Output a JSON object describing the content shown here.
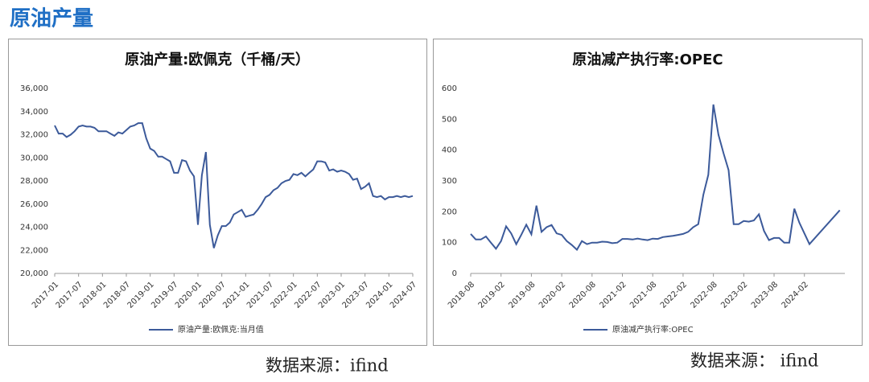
{
  "header": {
    "title": "原油产量"
  },
  "chart_data": [
    {
      "type": "line",
      "title": "原油产量:欧佩克（千桶/天）",
      "source": "数据来源：ifind",
      "x": [
        "2017-01",
        "2017-02",
        "2017-03",
        "2017-04",
        "2017-05",
        "2017-06",
        "2017-07",
        "2017-08",
        "2017-09",
        "2017-10",
        "2017-11",
        "2017-12",
        "2018-01",
        "2018-02",
        "2018-03",
        "2018-04",
        "2018-05",
        "2018-06",
        "2018-07",
        "2018-08",
        "2018-09",
        "2018-10",
        "2018-11",
        "2018-12",
        "2019-01",
        "2019-02",
        "2019-03",
        "2019-04",
        "2019-05",
        "2019-06",
        "2019-07",
        "2019-08",
        "2019-09",
        "2019-10",
        "2019-11",
        "2019-12",
        "2020-01",
        "2020-02",
        "2020-03",
        "2020-04",
        "2020-05",
        "2020-06",
        "2020-07",
        "2020-08",
        "2020-09",
        "2020-10",
        "2020-11",
        "2020-12",
        "2021-01",
        "2021-02",
        "2021-03",
        "2021-04",
        "2021-05",
        "2021-06",
        "2021-07",
        "2021-08",
        "2021-09",
        "2021-10",
        "2021-11",
        "2021-12",
        "2022-01",
        "2022-02",
        "2022-03",
        "2022-04",
        "2022-05",
        "2022-06",
        "2022-07",
        "2022-08",
        "2022-09",
        "2022-10",
        "2022-11",
        "2022-12",
        "2023-01",
        "2023-02",
        "2023-03",
        "2023-04",
        "2023-05",
        "2023-06",
        "2023-07",
        "2023-08",
        "2023-09",
        "2023-10",
        "2023-11",
        "2023-12",
        "2024-01",
        "2024-02",
        "2024-03",
        "2024-04",
        "2024-05",
        "2024-06",
        "2024-07"
      ],
      "series": [
        {
          "name": "原油产量:欧佩克:当月值",
          "color": "#3c5a9a",
          "values": [
            32800,
            32100,
            32100,
            31800,
            32000,
            32300,
            32700,
            32800,
            32700,
            32700,
            32600,
            32300,
            32300,
            32300,
            32100,
            31900,
            32200,
            32100,
            32400,
            32700,
            32800,
            33000,
            33000,
            31700,
            30800,
            30600,
            30100,
            30100,
            29900,
            29700,
            28700,
            28700,
            29800,
            29700,
            28900,
            28400,
            24200,
            28500,
            30500,
            24200,
            22200,
            23300,
            24100,
            24100,
            24400,
            25100,
            25300,
            25500,
            24900,
            25000,
            25100,
            25500,
            26000,
            26600,
            26800,
            27200,
            27400,
            27800,
            28000,
            28100,
            28600,
            28500,
            28700,
            28400,
            28700,
            29000,
            29700,
            29700,
            29600,
            28900,
            29000,
            28800,
            28900,
            28800,
            28600,
            28100,
            28200,
            27300,
            27500,
            27800,
            26700,
            26600,
            26700,
            26400,
            26600,
            26600,
            26700,
            26600,
            26700,
            26600,
            26700
          ]
        }
      ],
      "xlim": [
        "2017-01",
        "2024-07"
      ],
      "xticks": [
        "2017-01",
        "2017-07",
        "2018-01",
        "2018-07",
        "2019-01",
        "2019-07",
        "2020-01",
        "2020-07",
        "2021-01",
        "2021-07",
        "2022-01",
        "2022-07",
        "2023-01",
        "2023-07",
        "2024-01",
        "2024-07"
      ],
      "ylim": [
        20000,
        36000
      ],
      "yticks": [
        {
          "value": 20000,
          "label": "20,000"
        },
        {
          "value": 22000,
          "label": "22,000"
        },
        {
          "value": 24000,
          "label": "24,000"
        },
        {
          "value": 26000,
          "label": "26,000"
        },
        {
          "value": 28000,
          "label": "28,000"
        },
        {
          "value": 30000,
          "label": "30,000"
        },
        {
          "value": 32000,
          "label": "32,000"
        },
        {
          "value": 34000,
          "label": "34,000"
        },
        {
          "value": 36000,
          "label": "36,000"
        }
      ]
    },
    {
      "type": "line",
      "title": "原油减产执行率:OPEC",
      "source": "数据来源：  ifind",
      "x": [
        "2018-08",
        "2018-09",
        "2018-10",
        "2018-11",
        "2018-12",
        "2019-01",
        "2019-02",
        "2019-03",
        "2019-04",
        "2019-05",
        "2019-06",
        "2019-07",
        "2019-08",
        "2019-09",
        "2019-10",
        "2019-11",
        "2019-12",
        "2020-01",
        "2020-02",
        "2020-03",
        "2020-04",
        "2020-05",
        "2020-06",
        "2020-07",
        "2020-08",
        "2020-09",
        "2020-10",
        "2020-11",
        "2020-12",
        "2021-01",
        "2021-02",
        "2021-03",
        "2021-04",
        "2021-05",
        "2021-06",
        "2021-07",
        "2021-08",
        "2021-09",
        "2021-10",
        "2021-11",
        "2021-12",
        "2022-01",
        "2022-02",
        "2022-03",
        "2022-04",
        "2022-05",
        "2022-06",
        "2022-07",
        "2022-08",
        "2022-09",
        "2022-10",
        "2022-11",
        "2022-12",
        "2023-01",
        "2023-02",
        "2023-03",
        "2023-04",
        "2023-05",
        "2023-06",
        "2023-07",
        "2023-08",
        "2023-09",
        "2023-10",
        "2023-11",
        "2023-12",
        "2024-01",
        "2024-02",
        "2024-03",
        "2024-09"
      ],
      "series": [
        {
          "name": "原油减产执行率:OPEC",
          "color": "#3c5a9a",
          "values": [
            128,
            110,
            110,
            120,
            100,
            80,
            105,
            153,
            130,
            95,
            125,
            158,
            127,
            220,
            135,
            150,
            157,
            130,
            125,
            105,
            92,
            77,
            105,
            95,
            100,
            100,
            103,
            102,
            98,
            100,
            112,
            112,
            110,
            113,
            110,
            108,
            113,
            112,
            118,
            120,
            122,
            125,
            128,
            135,
            150,
            160,
            255,
            320,
            548,
            450,
            390,
            335,
            160,
            160,
            170,
            168,
            172,
            192,
            138,
            108,
            115,
            115,
            100,
            100,
            210,
            165,
            130,
            95,
            205
          ]
        }
      ],
      "xlim": [
        "2018-08",
        "2024-10"
      ],
      "xticks": [
        "2018-08",
        "2019-02",
        "2019-08",
        "2020-02",
        "2020-08",
        "2021-02",
        "2021-08",
        "2022-02",
        "2022-08",
        "2023-02",
        "2023-08",
        "2024-02"
      ],
      "ylim": [
        0,
        600
      ],
      "yticks": [
        0,
        100,
        200,
        300,
        400,
        500,
        600
      ]
    }
  ]
}
